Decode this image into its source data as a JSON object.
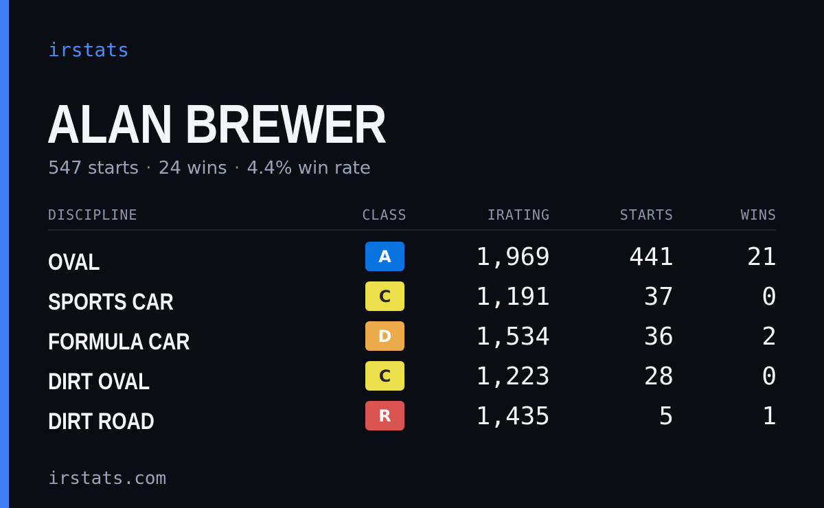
{
  "brand": "irstats",
  "driver": {
    "name": "ALAN BREWER"
  },
  "summary": {
    "starts": "547 starts",
    "wins": "24 wins",
    "win_rate": "4.4% win rate",
    "separator": "·"
  },
  "colors": {
    "accent": "#3f7ff4",
    "background": "#0b0d14",
    "class_A": "#0b73df",
    "class_C": "#ebe04c",
    "class_D": "#ecaa4a",
    "class_R": "#d95450"
  },
  "table": {
    "headers": {
      "discipline": "DISCIPLINE",
      "class": "CLASS",
      "irating": "IRATING",
      "starts": "STARTS",
      "wins": "WINS"
    },
    "rows": [
      {
        "discipline": "OVAL",
        "class": "A",
        "irating": "1,969",
        "starts": "441",
        "wins": "21"
      },
      {
        "discipline": "SPORTS CAR",
        "class": "C",
        "irating": "1,191",
        "starts": "37",
        "wins": "0"
      },
      {
        "discipline": "FORMULA CAR",
        "class": "D",
        "irating": "1,534",
        "starts": "36",
        "wins": "2"
      },
      {
        "discipline": "DIRT OVAL",
        "class": "C",
        "irating": "1,223",
        "starts": "28",
        "wins": "0"
      },
      {
        "discipline": "DIRT ROAD",
        "class": "R",
        "irating": "1,435",
        "starts": "5",
        "wins": "1"
      }
    ]
  },
  "footer": {
    "url": "irstats.com"
  }
}
